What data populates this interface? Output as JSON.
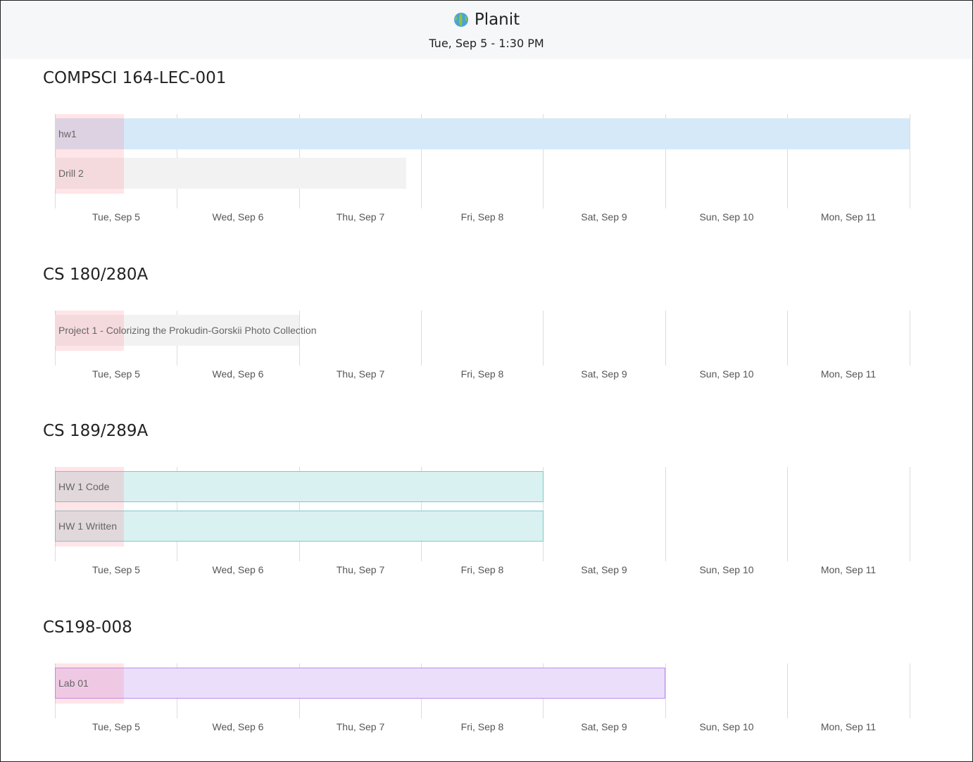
{
  "app": {
    "title": "Planit",
    "logo_icon": "globe-icon",
    "current_datetime": "Tue, Sep 5 - 1:30 PM"
  },
  "days": [
    "Tue, Sep 5",
    "Wed, Sep 6",
    "Thu, Sep 7",
    "Fri, Sep 8",
    "Sat, Sep 9",
    "Sun, Sep 10",
    "Mon, Sep 11"
  ],
  "today_marker_color": "#ffd6dc",
  "courses": [
    {
      "title": "COMPSCI 164-LEC-001",
      "tasks": [
        {
          "label": "hw1",
          "start_day": 0,
          "end_day": 7.0,
          "fill": "#d5e9f8",
          "border": "#d5e9f8"
        },
        {
          "label": "Drill 2",
          "start_day": 0,
          "end_day": 2.88,
          "fill": "#f2f2f2",
          "border": "#f2f2f2"
        }
      ]
    },
    {
      "title": "CS 180/280A",
      "tasks": [
        {
          "label": "Project 1 - Colorizing the Prokudin-Gorskii Photo Collection",
          "start_day": 0,
          "end_day": 2.0,
          "fill": "#f2f2f2",
          "border": "#f2f2f2"
        }
      ]
    },
    {
      "title": "CS 189/289A",
      "tasks": [
        {
          "label": "HW 1 Code",
          "start_day": 0,
          "end_day": 4.0,
          "fill": "#daf1f1",
          "border": "#7ccacb"
        },
        {
          "label": "HW 1 Written",
          "start_day": 0,
          "end_day": 4.0,
          "fill": "#daf1f1",
          "border": "#7ccacb"
        }
      ]
    },
    {
      "title": "CS198-008",
      "tasks": [
        {
          "label": "Lab 01",
          "start_day": 0,
          "end_day": 5.0,
          "fill": "#ebdefb",
          "border": "#b88ee8"
        }
      ]
    }
  ]
}
